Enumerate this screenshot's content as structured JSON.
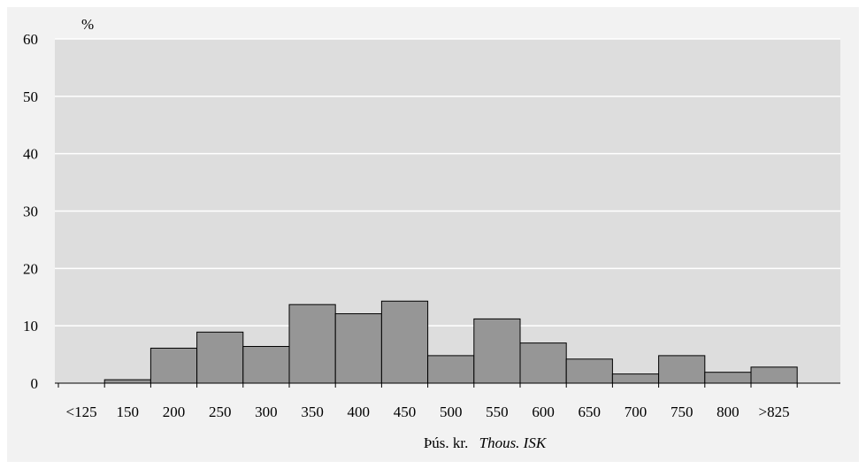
{
  "chart_data": {
    "type": "bar",
    "categories": [
      "<125",
      "150",
      "200",
      "250",
      "300",
      "350",
      "400",
      "450",
      "500",
      "550",
      "600",
      "650",
      "700",
      "750",
      "800",
      ">825"
    ],
    "values": [
      0,
      0.6,
      6.1,
      8.9,
      6.4,
      13.7,
      12.1,
      14.3,
      4.8,
      11.2,
      7.0,
      4.2,
      1.6,
      4.8,
      1.9,
      2.8
    ],
    "title": "",
    "ylabel": "%",
    "xlabel_main": "Þús. kr.",
    "xlabel_italic": "Thous. ISK",
    "ylim": [
      0,
      60
    ],
    "yticks": [
      0,
      10,
      20,
      30,
      40,
      50,
      60
    ],
    "grid": true,
    "colors": {
      "plot_background": "#dddddd",
      "bar_fill": "#969696",
      "bar_stroke": "#000000",
      "gridline": "#ffffff"
    }
  }
}
